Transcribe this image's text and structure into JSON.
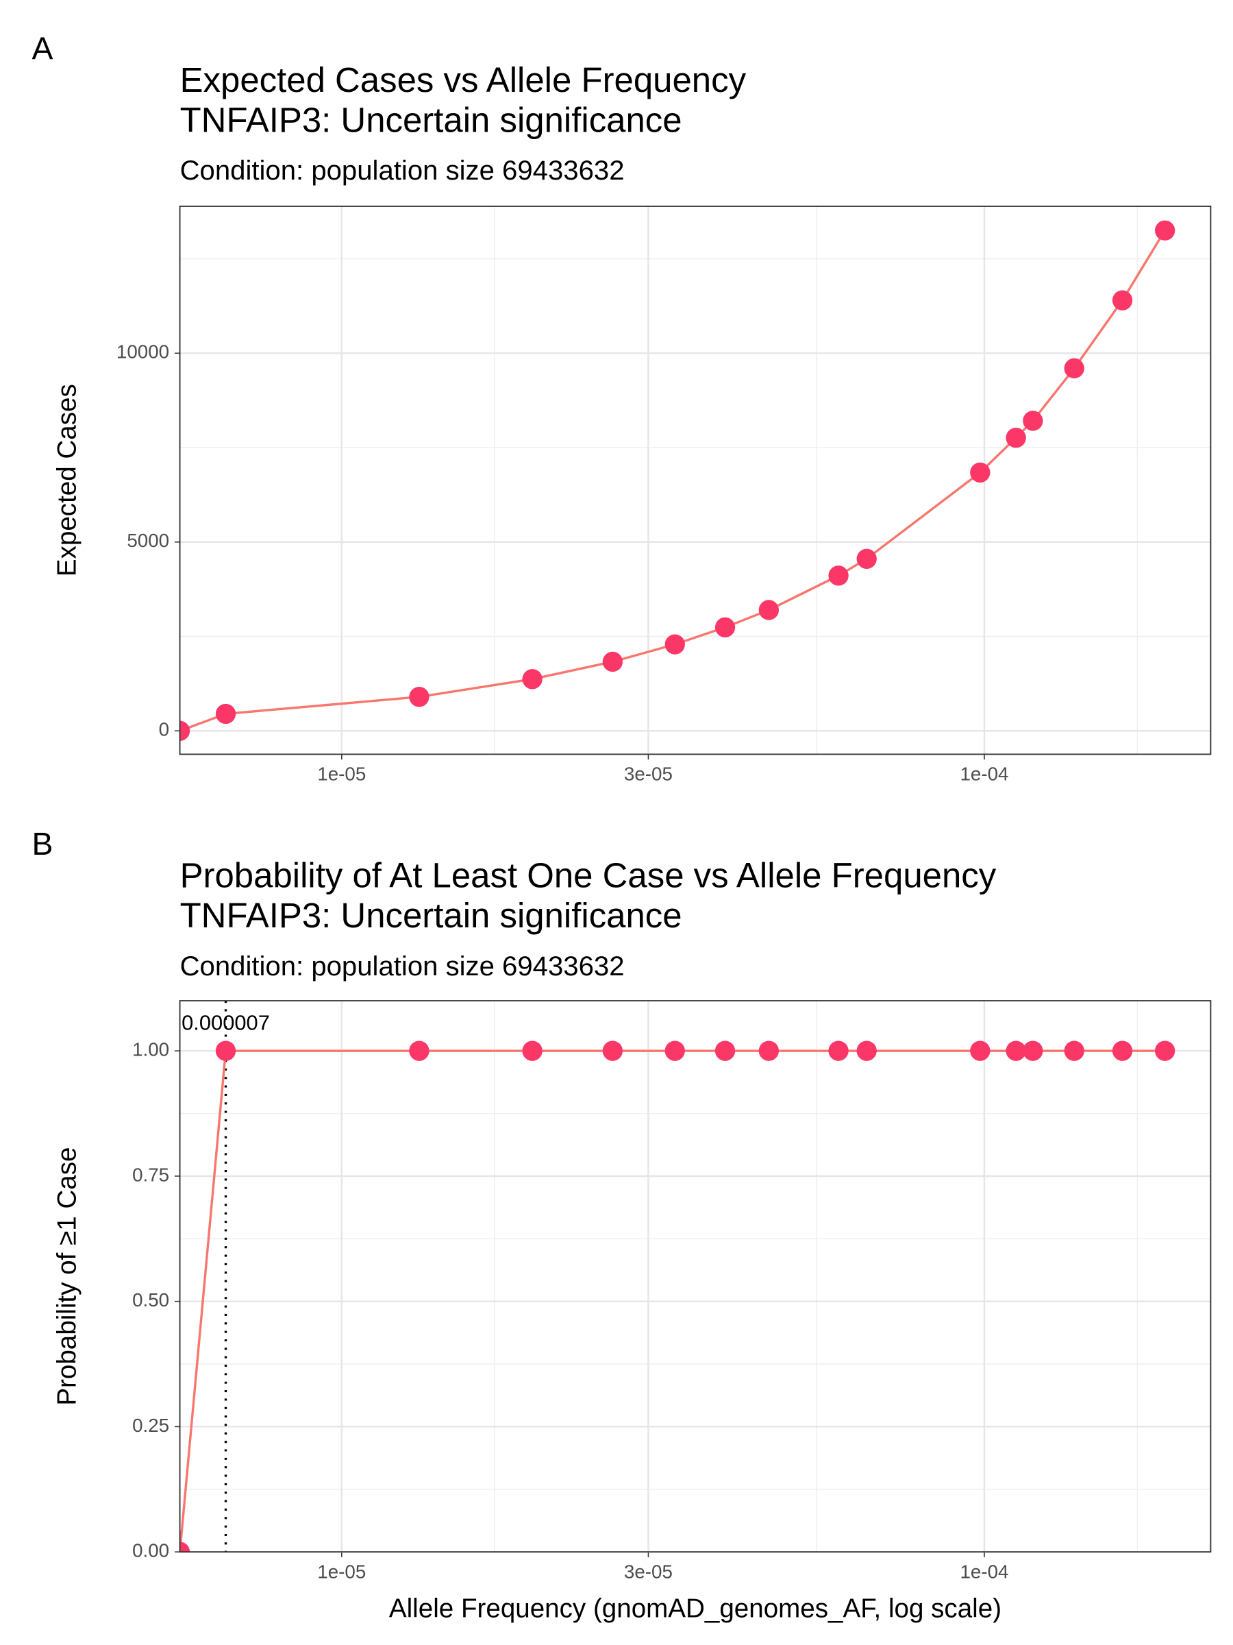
{
  "chart_data": [
    {
      "type": "line",
      "tag": "A",
      "title": [
        "Expected Cases vs Allele Frequency",
        "TNFAIP3: Uncertain significance"
      ],
      "subtitle": "Condition: population size 69433632",
      "ylabel": "Expected Cases",
      "log_x": true,
      "grid": true,
      "line_color": "#f8766d",
      "point_color": "#fb3768",
      "x": [
        0,
        6.6e-06,
        1.32e-05,
        1.98e-05,
        2.64e-05,
        3.3e-05,
        3.95e-05,
        4.62e-05,
        5.93e-05,
        6.56e-05,
        9.85e-05,
        0.000112,
        0.000119,
        0.000138,
        0.000164,
        0.000191
      ],
      "values": [
        0,
        450,
        900,
        1370,
        1830,
        2290,
        2740,
        3200,
        4110,
        4555,
        6840,
        7760,
        8210,
        9600,
        11400,
        13250
      ],
      "xlim": [
        5.6e-06,
        0.000225
      ],
      "ylim": [
        -620,
        13890
      ],
      "xticks": [
        {
          "value": 1e-05,
          "label": "1e-05"
        },
        {
          "value": 3e-05,
          "label": "3e-05"
        },
        {
          "value": 0.0001,
          "label": "1e-04"
        }
      ],
      "yticks": [
        0,
        5000,
        10000
      ],
      "xminor": [
        1.73e-05,
        5.48e-05,
        0.000173
      ],
      "yminor": [
        2500,
        7500,
        12500
      ]
    },
    {
      "type": "line",
      "tag": "B",
      "title": [
        "Probability of At Least One Case vs Allele Frequency",
        "TNFAIP3: Uncertain significance"
      ],
      "subtitle": "Condition: population size 69433632",
      "ylabel": "Probability of ≥1 Case",
      "xlabel": "Allele Frequency (gnomAD_genomes_AF, log scale)",
      "log_x": true,
      "grid": true,
      "line_color": "#f8766d",
      "point_color": "#fb3768",
      "x": [
        0,
        6.6e-06,
        1.32e-05,
        1.98e-05,
        2.64e-05,
        3.3e-05,
        3.95e-05,
        4.62e-05,
        5.93e-05,
        6.56e-05,
        9.85e-05,
        0.000112,
        0.000119,
        0.000138,
        0.000164,
        0.000191
      ],
      "values": [
        0,
        1,
        1,
        1,
        1,
        1,
        1,
        1,
        1,
        1,
        1,
        1,
        1,
        1,
        1,
        1
      ],
      "xlim": [
        5.6e-06,
        0.000225
      ],
      "ylim": [
        0,
        1.1
      ],
      "xticks": [
        {
          "value": 1e-05,
          "label": "1e-05"
        },
        {
          "value": 3e-05,
          "label": "3e-05"
        },
        {
          "value": 0.0001,
          "label": "1e-04"
        }
      ],
      "yticks": [
        {
          "value": 0,
          "label": "0.00"
        },
        {
          "value": 0.25,
          "label": "0.25"
        },
        {
          "value": 0.5,
          "label": "0.50"
        },
        {
          "value": 0.75,
          "label": "0.75"
        },
        {
          "value": 1,
          "label": "1.00"
        }
      ],
      "xminor": [
        1.73e-05,
        5.48e-05,
        0.000173
      ],
      "yminor": [
        0.125,
        0.375,
        0.625,
        0.875
      ],
      "vline": 6.6e-06,
      "annotation": {
        "text": "0.000007",
        "x": 6.6e-06,
        "y": 1.053
      }
    }
  ]
}
